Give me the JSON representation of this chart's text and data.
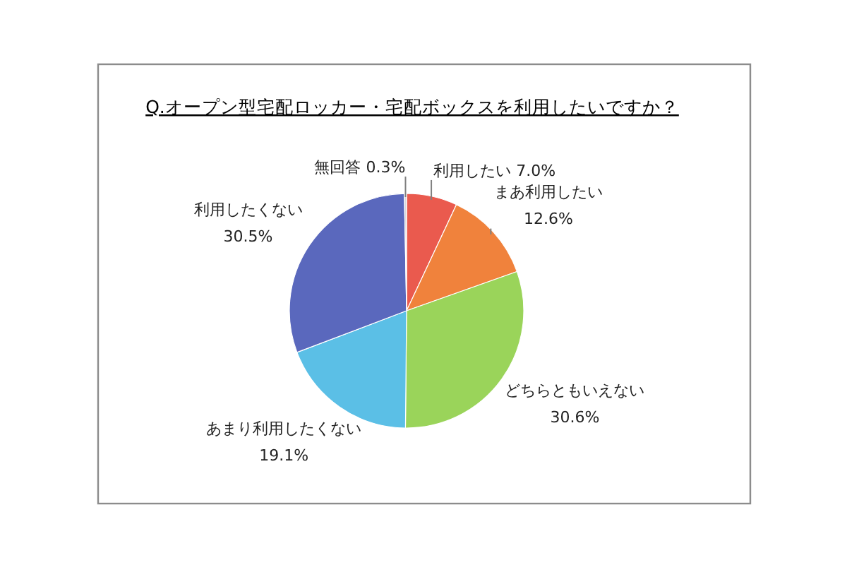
{
  "chart_data": {
    "type": "pie",
    "title": "Q.オープン型宅配ロッカー・宅配ボックスを利用したいですか？",
    "categories": [
      "利用したい",
      "まあ利用したい",
      "どちらともいえない",
      "あまり利用したくない",
      "利用したくない",
      "無回答"
    ],
    "values": [
      7.0,
      12.6,
      30.6,
      19.1,
      30.5,
      0.3
    ],
    "value_labels": [
      "7.0%",
      "12.6%",
      "30.6%",
      "19.1%",
      "30.5%",
      "0.3%"
    ],
    "colors": [
      "#ea5a4e",
      "#f0823c",
      "#9ad45a",
      "#5bbfe6",
      "#5a68bd",
      "#d9d9d9"
    ]
  }
}
